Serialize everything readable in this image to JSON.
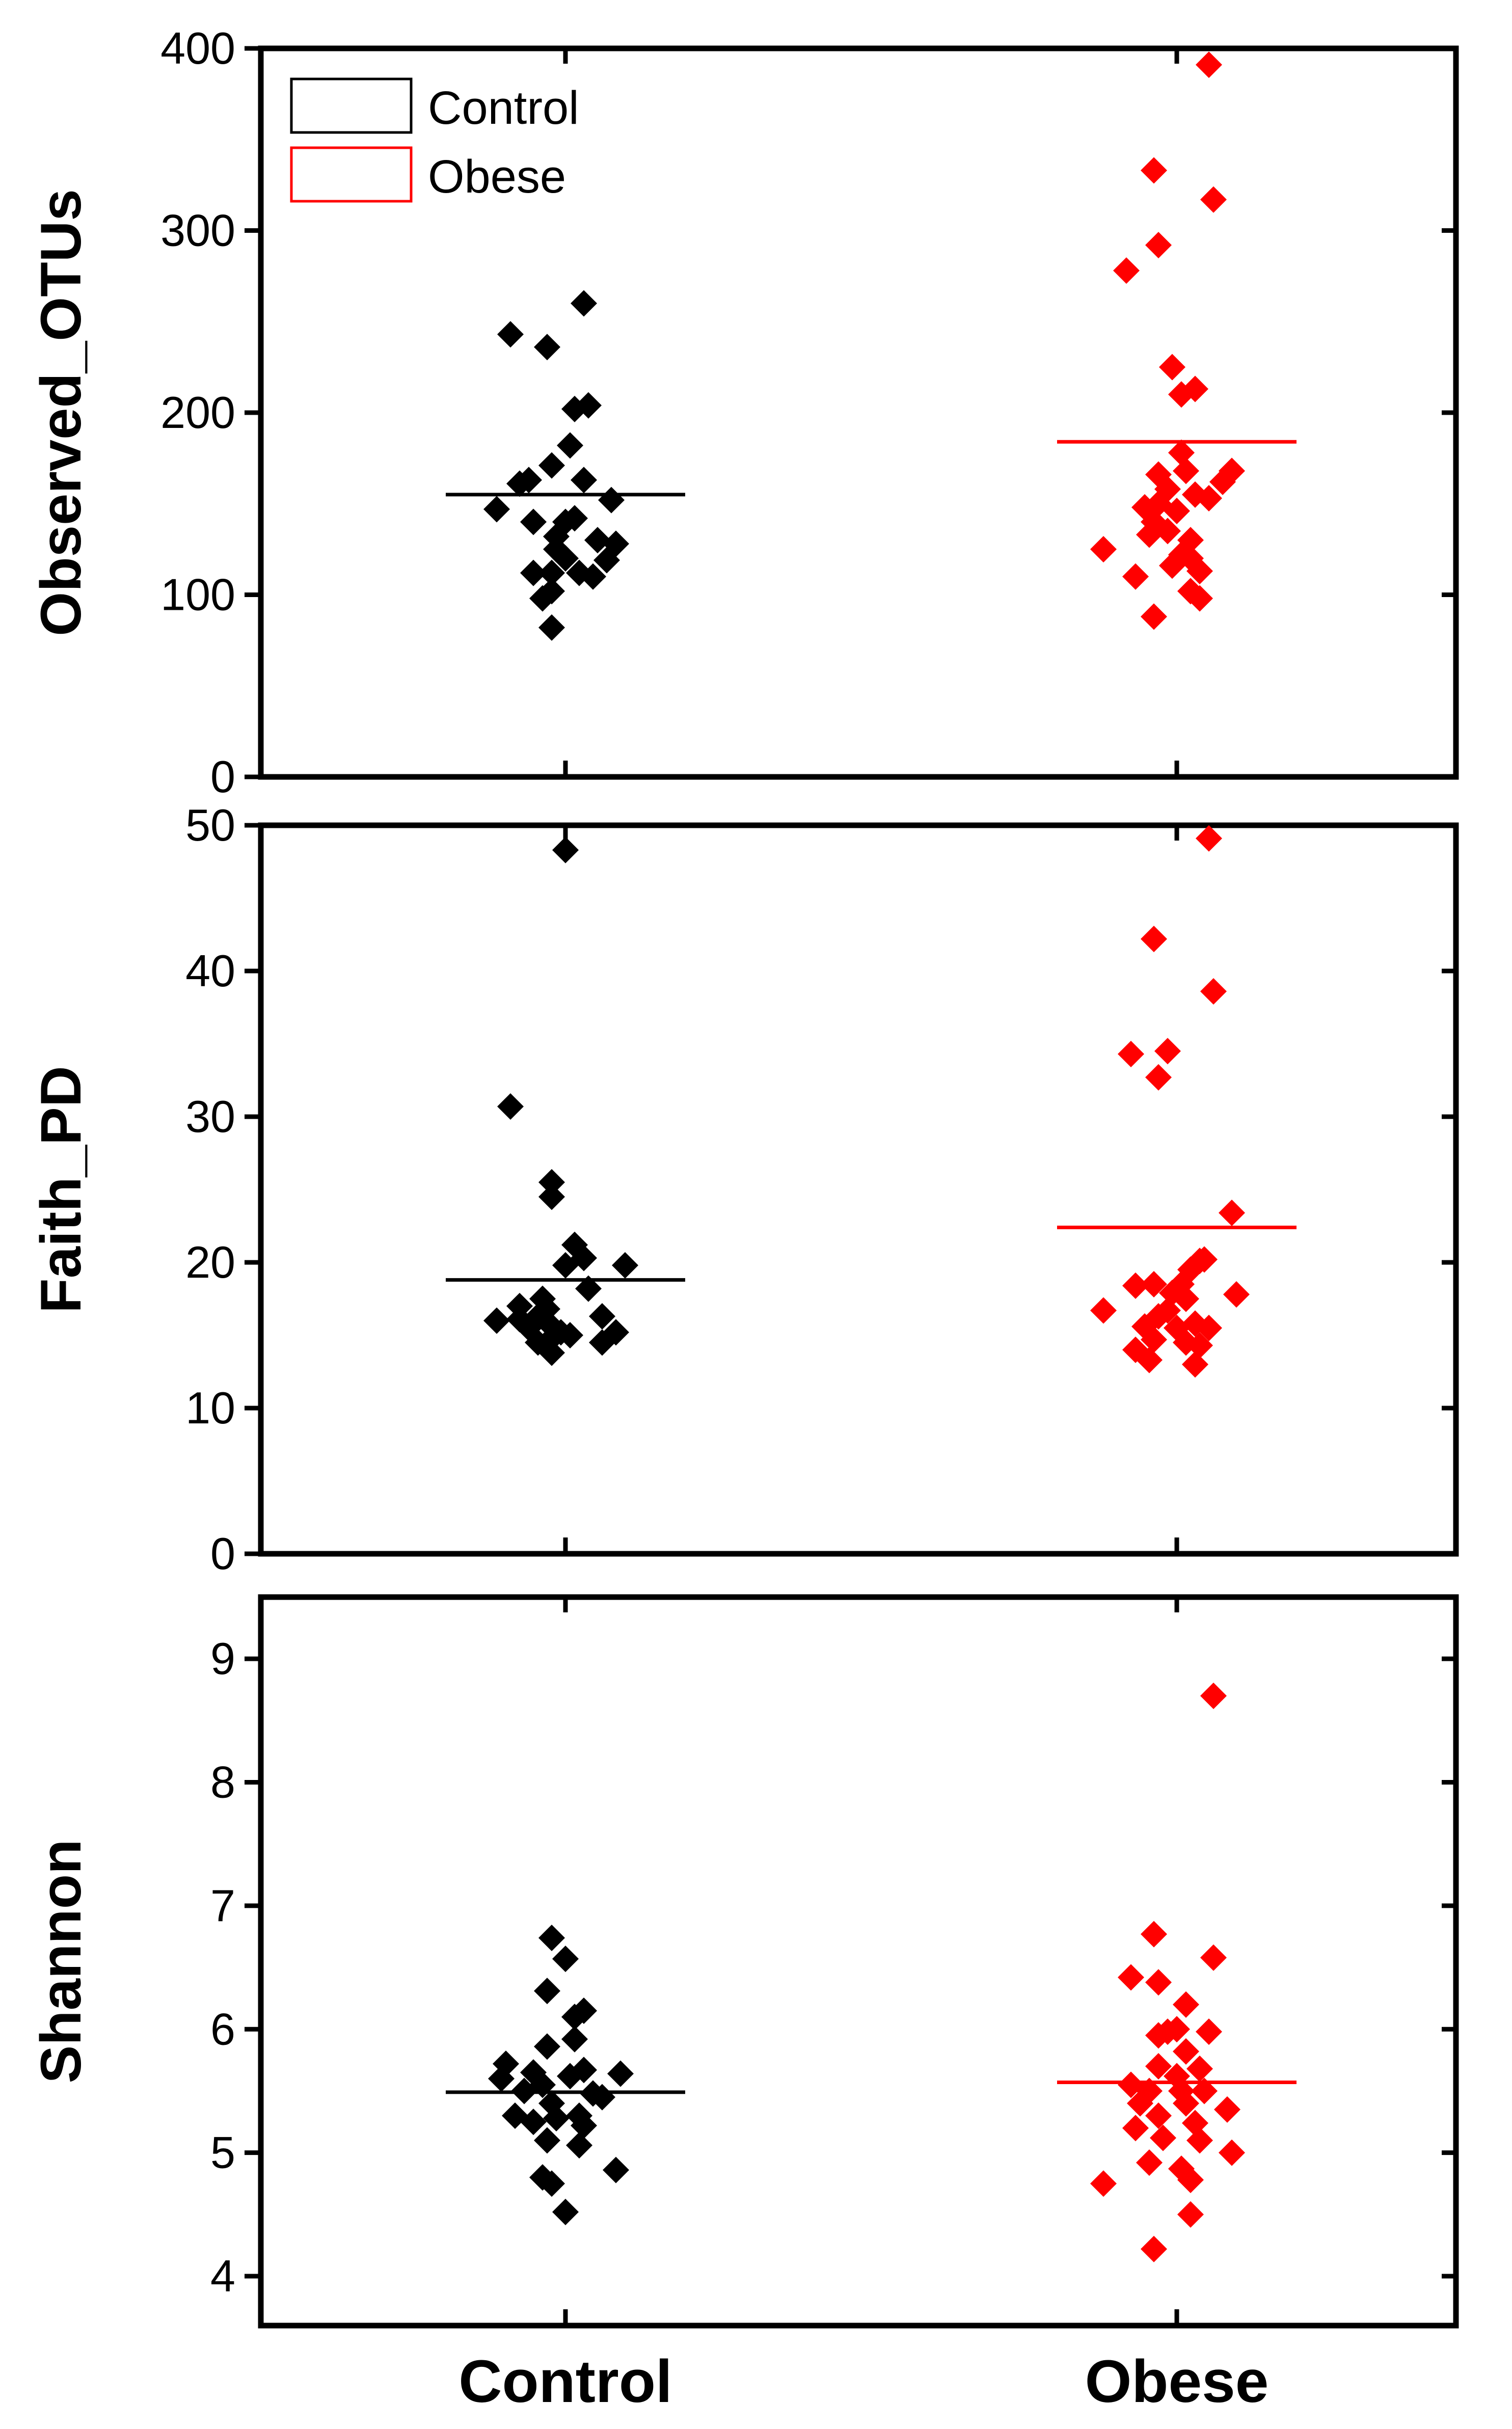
{
  "chart_data": [
    {
      "type": "scatter",
      "ylabel": "Observed_OTUs",
      "ylim": [
        0,
        400
      ],
      "yticks": [
        0,
        100,
        200,
        300,
        400
      ],
      "categories": [
        "Control",
        "Obese"
      ],
      "legend": {
        "placement": "top-left",
        "entries": [
          {
            "label": "Control",
            "color": "#000000"
          },
          {
            "label": "Obese",
            "color": "#ff0000"
          }
        ]
      },
      "series": [
        {
          "name": "Control",
          "color": "#000000",
          "mean": 155,
          "points": [
            [
              -0.12,
              243
            ],
            [
              -0.04,
              236
            ],
            [
              0.04,
              260
            ],
            [
              0.02,
              202
            ],
            [
              0.05,
              204
            ],
            [
              0.01,
              182
            ],
            [
              -0.03,
              171
            ],
            [
              -0.1,
              161
            ],
            [
              -0.08,
              163
            ],
            [
              0.04,
              163
            ],
            [
              -0.15,
              147
            ],
            [
              -0.07,
              140
            ],
            [
              0.0,
              140
            ],
            [
              -0.02,
              132
            ],
            [
              0.02,
              142
            ],
            [
              0.1,
              152
            ],
            [
              0.07,
              130
            ],
            [
              0.11,
              128
            ],
            [
              -0.02,
              125
            ],
            [
              0.0,
              120
            ],
            [
              0.09,
              119
            ],
            [
              -0.07,
              112
            ],
            [
              -0.03,
              112
            ],
            [
              0.03,
              112
            ],
            [
              0.06,
              110
            ],
            [
              -0.05,
              98
            ],
            [
              -0.03,
              102
            ],
            [
              -0.03,
              82
            ]
          ]
        },
        {
          "name": "Obese",
          "color": "#ff0000",
          "mean": 184,
          "points": [
            [
              0.07,
              391
            ],
            [
              -0.05,
              333
            ],
            [
              0.08,
              317
            ],
            [
              -0.04,
              292
            ],
            [
              -0.11,
              278
            ],
            [
              -0.01,
              225
            ],
            [
              0.01,
              210
            ],
            [
              0.04,
              213
            ],
            [
              0.01,
              178
            ],
            [
              0.02,
              168
            ],
            [
              0.12,
              168
            ],
            [
              0.1,
              162
            ],
            [
              -0.04,
              166
            ],
            [
              -0.02,
              158
            ],
            [
              0.04,
              155
            ],
            [
              0.07,
              153
            ],
            [
              -0.04,
              150
            ],
            [
              -0.07,
              148
            ],
            [
              -0.05,
              140
            ],
            [
              0.0,
              146
            ],
            [
              -0.02,
              135
            ],
            [
              -0.06,
              133
            ],
            [
              0.03,
              130
            ],
            [
              0.01,
              122
            ],
            [
              -0.16,
              125
            ],
            [
              0.03,
              120
            ],
            [
              0.05,
              113
            ],
            [
              -0.01,
              116
            ],
            [
              -0.09,
              110
            ],
            [
              0.03,
              102
            ],
            [
              0.05,
              98
            ],
            [
              -0.05,
              88
            ]
          ]
        }
      ]
    },
    {
      "type": "scatter",
      "ylabel": "Faith_PD",
      "ylim": [
        0,
        50
      ],
      "yticks": [
        0,
        10,
        20,
        30,
        40,
        50
      ],
      "categories": [
        "Control",
        "Obese"
      ],
      "series": [
        {
          "name": "Control",
          "color": "#000000",
          "mean": 18.8,
          "points": [
            [
              0.0,
              48.3
            ],
            [
              -0.12,
              30.7
            ],
            [
              -0.03,
              24.5
            ],
            [
              -0.03,
              25.5
            ],
            [
              0.02,
              21.2
            ],
            [
              0.04,
              20.3
            ],
            [
              0.0,
              19.8
            ],
            [
              0.13,
              19.8
            ],
            [
              0.05,
              18.2
            ],
            [
              -0.1,
              17.0
            ],
            [
              -0.05,
              17.5
            ],
            [
              -0.04,
              16.8
            ],
            [
              -0.15,
              16.0
            ],
            [
              -0.1,
              16.1
            ],
            [
              -0.08,
              15.5
            ],
            [
              -0.06,
              16.3
            ],
            [
              -0.03,
              15.6
            ],
            [
              -0.01,
              15.2
            ],
            [
              0.01,
              15.0
            ],
            [
              0.08,
              16.3
            ],
            [
              0.11,
              15.2
            ],
            [
              0.08,
              14.5
            ],
            [
              -0.06,
              14.5
            ],
            [
              -0.03,
              14.8
            ],
            [
              -0.03,
              13.8
            ]
          ]
        },
        {
          "name": "Obese",
          "color": "#ff0000",
          "mean": 22.4,
          "points": [
            [
              0.07,
              49.1
            ],
            [
              -0.05,
              42.2
            ],
            [
              0.08,
              38.6
            ],
            [
              -0.1,
              34.3
            ],
            [
              -0.02,
              34.5
            ],
            [
              -0.04,
              32.7
            ],
            [
              0.12,
              23.4
            ],
            [
              0.05,
              20.1
            ],
            [
              0.06,
              20.2
            ],
            [
              0.03,
              19.5
            ],
            [
              0.01,
              18.5
            ],
            [
              -0.01,
              17.9
            ],
            [
              -0.09,
              18.4
            ],
            [
              -0.05,
              18.5
            ],
            [
              0.02,
              17.5
            ],
            [
              0.13,
              17.8
            ],
            [
              -0.02,
              16.7
            ],
            [
              -0.16,
              16.7
            ],
            [
              -0.04,
              16.3
            ],
            [
              -0.07,
              15.6
            ],
            [
              0.0,
              15.5
            ],
            [
              0.04,
              15.8
            ],
            [
              0.07,
              15.5
            ],
            [
              -0.05,
              14.7
            ],
            [
              0.02,
              14.5
            ],
            [
              -0.09,
              14.0
            ],
            [
              0.05,
              14.3
            ],
            [
              -0.06,
              13.3
            ],
            [
              0.04,
              13.0
            ]
          ]
        }
      ]
    },
    {
      "type": "scatter",
      "ylabel": "Shannon",
      "ylim": [
        3.6,
        9.5
      ],
      "yticks": [
        4,
        5,
        6,
        7,
        8,
        9
      ],
      "categories": [
        "Control",
        "Obese"
      ],
      "series": [
        {
          "name": "Control",
          "color": "#000000",
          "mean": 5.49,
          "points": [
            [
              -0.03,
              6.74
            ],
            [
              0.0,
              6.57
            ],
            [
              -0.04,
              6.31
            ],
            [
              0.04,
              6.15
            ],
            [
              0.02,
              6.1
            ],
            [
              0.02,
              5.92
            ],
            [
              -0.04,
              5.86
            ],
            [
              -0.13,
              5.72
            ],
            [
              -0.07,
              5.65
            ],
            [
              -0.14,
              5.6
            ],
            [
              0.04,
              5.67
            ],
            [
              0.12,
              5.64
            ],
            [
              0.01,
              5.62
            ],
            [
              -0.05,
              5.55
            ],
            [
              -0.09,
              5.5
            ],
            [
              0.06,
              5.48
            ],
            [
              0.08,
              5.45
            ],
            [
              -0.03,
              5.4
            ],
            [
              -0.11,
              5.3
            ],
            [
              -0.07,
              5.25
            ],
            [
              -0.02,
              5.28
            ],
            [
              0.03,
              5.3
            ],
            [
              0.04,
              5.22
            ],
            [
              -0.04,
              5.1
            ],
            [
              0.03,
              5.06
            ],
            [
              0.11,
              4.86
            ],
            [
              -0.05,
              4.8
            ],
            [
              -0.03,
              4.75
            ],
            [
              0.0,
              4.52
            ]
          ]
        },
        {
          "name": "Obese",
          "color": "#ff0000",
          "mean": 5.57,
          "points": [
            [
              0.08,
              8.7
            ],
            [
              -0.05,
              6.77
            ],
            [
              0.08,
              6.58
            ],
            [
              -0.1,
              6.42
            ],
            [
              -0.04,
              6.38
            ],
            [
              0.02,
              6.2
            ],
            [
              -0.04,
              5.95
            ],
            [
              -0.02,
              5.98
            ],
            [
              0.0,
              6.0
            ],
            [
              0.07,
              5.98
            ],
            [
              0.02,
              5.82
            ],
            [
              -0.04,
              5.7
            ],
            [
              0.05,
              5.68
            ],
            [
              0.0,
              5.62
            ],
            [
              -0.1,
              5.55
            ],
            [
              -0.06,
              5.5
            ],
            [
              0.01,
              5.5
            ],
            [
              0.06,
              5.5
            ],
            [
              -0.08,
              5.4
            ],
            [
              0.02,
              5.4
            ],
            [
              0.11,
              5.35
            ],
            [
              -0.04,
              5.3
            ],
            [
              0.04,
              5.24
            ],
            [
              -0.09,
              5.2
            ],
            [
              -0.03,
              5.12
            ],
            [
              0.05,
              5.1
            ],
            [
              0.12,
              5.0
            ],
            [
              -0.06,
              4.92
            ],
            [
              0.01,
              4.87
            ],
            [
              0.03,
              4.78
            ],
            [
              -0.16,
              4.75
            ],
            [
              0.03,
              4.5
            ],
            [
              -0.05,
              4.22
            ]
          ]
        }
      ]
    }
  ]
}
